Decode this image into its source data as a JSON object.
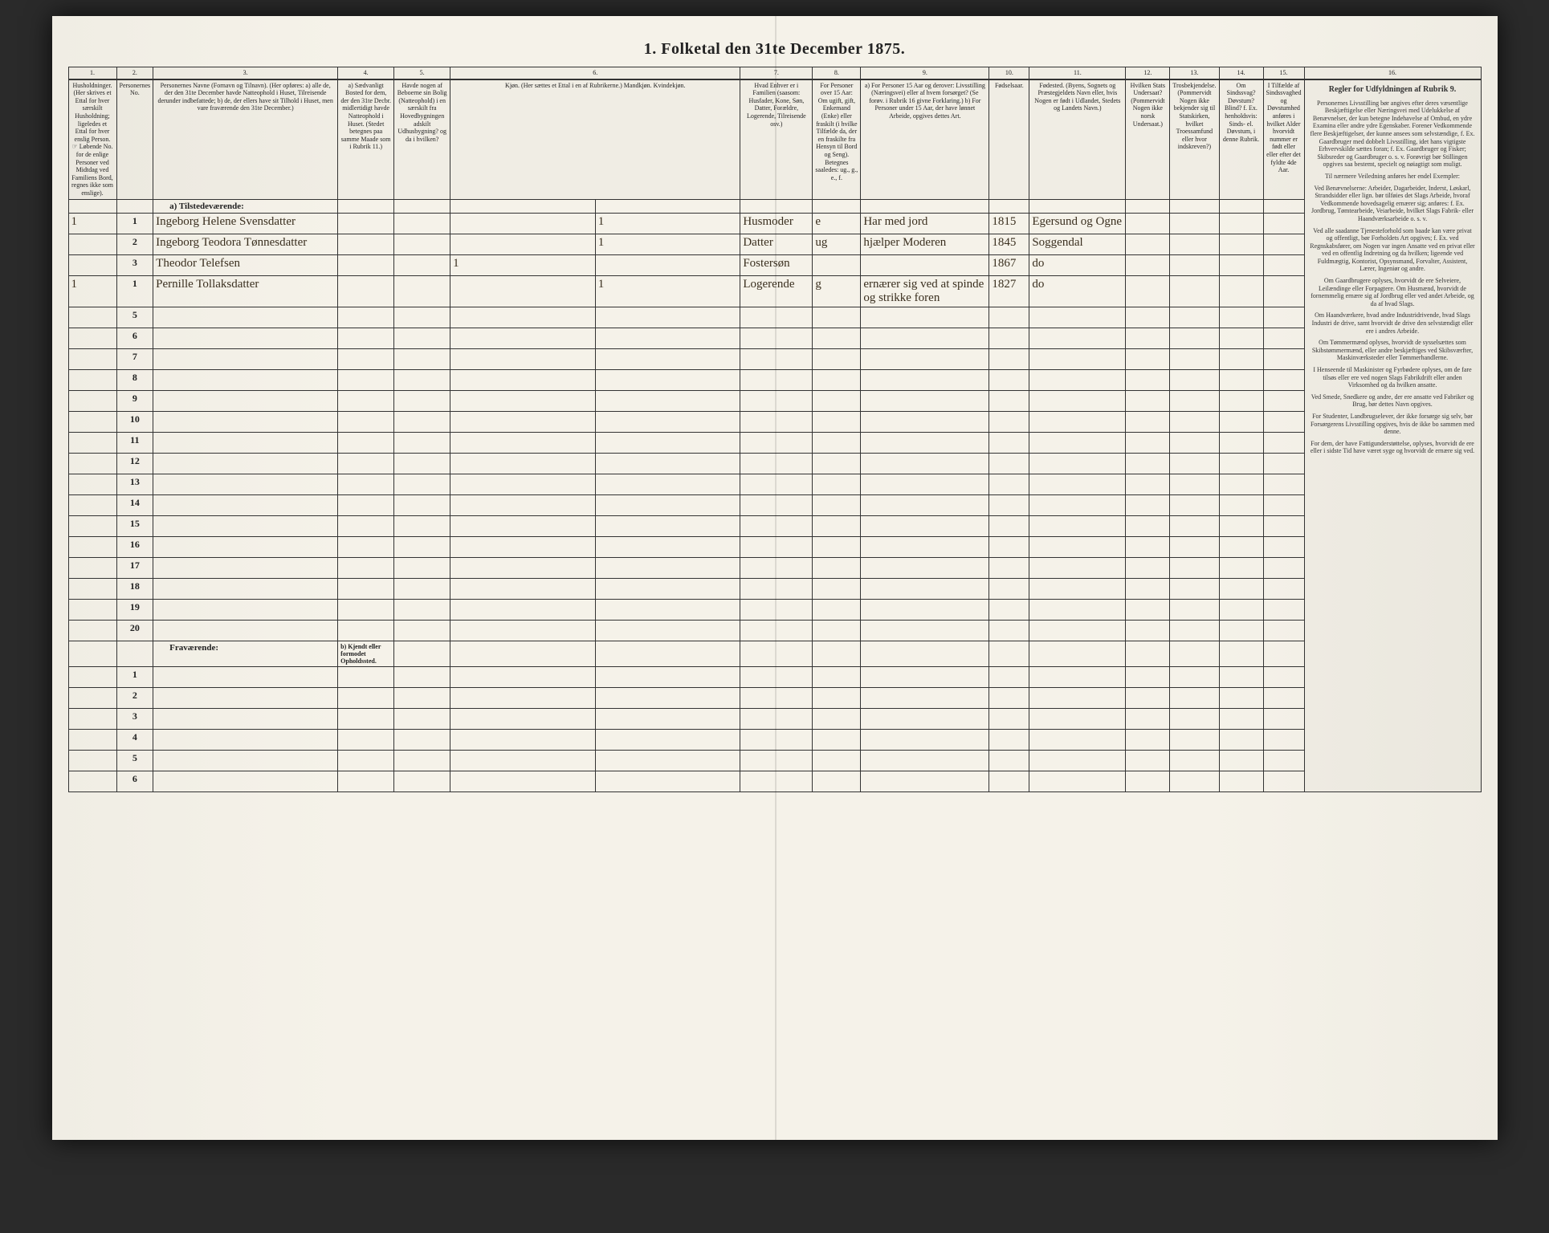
{
  "title": "1. Folketal den 31te December 1875.",
  "columns": {
    "num": [
      "1.",
      "2.",
      "3.",
      "4.",
      "5.",
      "6.",
      "7.",
      "8.",
      "9.",
      "10.",
      "11.",
      "12.",
      "13.",
      "14.",
      "15.",
      "16."
    ],
    "heads": [
      "Husholdninger. (Her skrives et Ettal for hver særskilt Husholdning; ligeledes et Ettal for hver enslig Person. ☞ Løbende No. for de enlige Personer ved Midtdag ved Familiens Bord, regnes ikke som enslige).",
      "Personernes No.",
      "Personernes Navne (Fornavn og Tilnavn). (Her opføres: a) alle de, der den 31te December havde Natteophold i Huset, Tilreisende derunder indbefattede; b) de, der ellers have sit Tilhold i Huset, men vare fraværende den 31te December.)",
      "a) Sædvanligt Bosted for dem, der den 31te Decbr. midlertidigt havde Natteophold i Huset. (Stedet betegnes paa samme Maade som i Rubrik 11.)",
      "Havde nogen af Beboerne sin Bolig (Natteophold) i en særskilt fra Hovedbygningen adskilt Udhusbygning? og da i hvilken?",
      "Kjøn. (Her sættes et Ettal i en af Rubrikerne.) Mandkjøn. Kvindekjøn.",
      "Hvad Enhver er i Familien (saasom: Husfader, Kone, Søn, Datter, Forældre, Logerende, Tilreisende osv.)",
      "For Personer over 15 Aar: Om ugift, gift, Enkemand (Enke) eller fraskilt (i hvilke Tilfælde da, der en fraskilte fra Hensyn til Bord og Seng). Betegnes saaledes: ug., g., e., f.",
      "a) For Personer 15 Aar og derover: Livsstilling (Næringsvei) eller af hvem forsørget? (Se forøv. i Rubrik 16 givne Forklaring.) b) For Personer under 15 Aar, der have lønnet Arbeide, opgives dettes Art.",
      "Fødselsaar.",
      "Fødested. (Byens, Sognets og Præstegjeldets Navn eller, hvis Nogen er født i Udlandet, Stedets og Landets Navn.)",
      "Hvilken Stats Undersaat? (Pommervidt Nogen ikke norsk Undersaat.)",
      "Trosbekjendelse. (Pommervidt Nogen ikke bekjender sig til Statskirken, hvilket Troessamfund eller hvor indskreven?)",
      "Om Sindssvag? Døvstum? Blind? f. Ex. henholdsvis: Sinds- el. Døvstum, i denne Rubrik.",
      "I Tilfælde af Sindssvaghed og Døvstumhed anføres i hvilket Alder hvorvidt nummer er født eller eller efter det fyldte 4de Aar.",
      "Regler for Udfyldningen af Rubrik 9."
    ]
  },
  "section_a": "a) Tilstedeværende:",
  "section_b": "Fraværende:",
  "section_b_col4": "b) Kjendt eller formodet Opholdssted.",
  "rows": [
    {
      "hh": "1",
      "no": "1",
      "name": "Ingeborg Helene Svensdatter",
      "col6": "1",
      "family": "Husmoder",
      "marital": "e",
      "occupation": "Har med jord",
      "year": "1815",
      "birthplace": "Egersund og Ogne"
    },
    {
      "hh": "",
      "no": "2",
      "name": "Ingeborg Teodora Tønnesdatter",
      "col6": "1",
      "family": "Datter",
      "marital": "ug",
      "occupation": "hjælper Moderen",
      "year": "1845",
      "birthplace": "Soggendal"
    },
    {
      "hh": "",
      "no": "3",
      "name": "Theodor Telefsen",
      "col6": "1",
      "family": "Fostersøn",
      "marital": "",
      "occupation": "",
      "year": "1867",
      "birthplace": "do"
    },
    {
      "hh": "1",
      "no": "1",
      "name": "Pernille Tollaksdatter",
      "col6": "1",
      "family": "Logerende",
      "marital": "g",
      "occupation": "ernærer sig ved at spinde og strikke foren",
      "year": "1827",
      "birthplace": "do"
    }
  ],
  "instructions": {
    "heading": "Regler for Udfyldningen af Rubrik 9.",
    "paras": [
      "Personernes Livsstilling bør angives efter deres væsentlige Beskjæftigelse eller Næringsvei med Udelukkelse af Benævnelser, der kun betegne Indehavelse af Ombud, en ydre Examina eller andre ydre Egenskaber. Forener Vedkommende flere Beskjæftigelser, der kunne ansees som selvstændige, f. Ex. Gaardbruger med dobbelt Livsstilling, idet hans vigtigste Erhvervskilde sættes foran; f. Ex. Gaardbruger og Fisker; Skibsreder og Gaardbruger o. s. v. Forøvrigt bør Stillingen opgives saa bestemt, specielt og nøiagtigt som muligt.",
      "Til nærmere Veiledning anføres her endel Exempler:",
      "Ved Benævnelserne: Arbeider, Dagarbeider, Inderst, Løskarl, Strandsidder eller lign. bør tilføies det Slags Arbeide, hvoraf Vedkommende hovedsagelig ernærer sig; anføres: f. Ex. Jordbrug, Tømtearbeide, Veiarbeide, hvilket Slags Fabrik- eller Haandværksarbeide o. s. v.",
      "Ved alle saadanne Tjenesteforhold som baade kan være privat og offentligt, bør Forholdets Art opgives; f. Ex. ved Regnskabsfører, om Nogen var ingen Ansatte ved en privat eller ved en offentlig Indretning og da hvilken; ligeende ved Fuldmægtig, Kontorist, Opsynsmand, Forvalter, Assistent, Lærer, Ingeniør og andre.",
      "Om Gaardbrugere oplyses, hvorvidt de ere Selveiere, Leilændinge eller Forpagtere. Om Husmænd, hvorvidt de fornemmelig ernære sig af Jordbrug eller ved andet Arbeide, og da af hvad Slags.",
      "Om Haandværkere, hvad andre Industridrivende, hvad Slags Industri de drive, samt hvorvidt de drive den selvstændigt eller ere i andres Arbeide.",
      "Om Tømmermænd oplyses, hvorvidt de sysselsættes som Skibstømmermænd, eller andre beskjæftiges ved Skibsværfter, Maskinværksteder eller Tømmerhandlerne.",
      "I Henseende til Maskinister og Fyrbødere oplyses, om de fare tilsøs eller ere ved nogen Slags Fabrikdrift eller anden Virksomhed og da hvilken ansatte.",
      "Ved Smede, Snedkere og andre, der ere ansatte ved Fabriker og Brug, bør dettes Navn opgives.",
      "For Studenter, Landbrugselever, der ikke forsørge sig selv, bør Forsørgerens Livsstilling opgives, hvis de ikke bo sammen med denne.",
      "For dem, der have Fattigunderstøttelse, oplyses, hvorvidt de ere eller i sidste Tid have været syge og hvorvidt de ernære sig ved."
    ]
  },
  "colors": {
    "paper": "#f5f2e9",
    "ink": "#222222",
    "handwriting": "#3a2f1f",
    "rule": "#333333"
  }
}
